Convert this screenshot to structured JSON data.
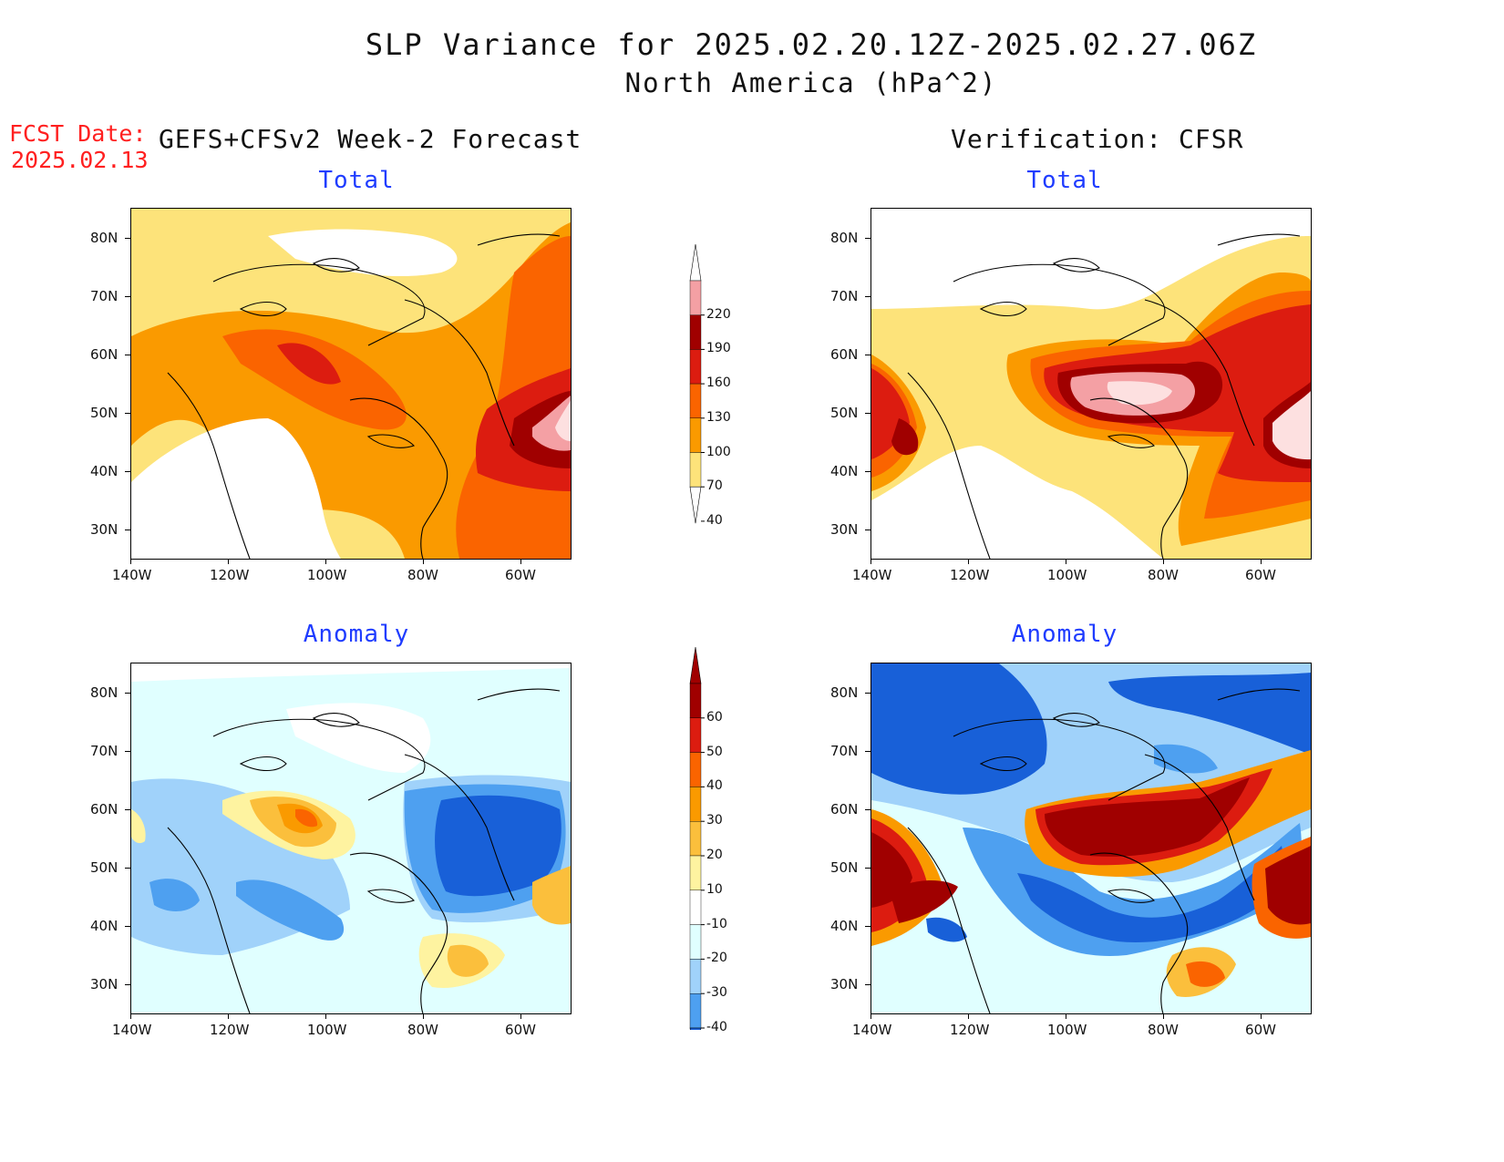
{
  "header": {
    "title_line1": "SLP Variance for 2025.02.20.12Z-2025.02.27.06Z",
    "title_line2": "North America (hPa^2)"
  },
  "forecast_date": {
    "label": "FCST Date:",
    "value": "2025.02.13"
  },
  "columns": {
    "left_label": "GEFS+CFSv2 Week-2 Forecast",
    "right_label": "Verification: CFSR"
  },
  "panels": {
    "fc_total_title": "Total",
    "fc_anom_title": "Anomaly",
    "ver_total_title": "Total",
    "ver_anom_title": "Anomaly"
  },
  "axes": {
    "lat_labels": [
      "80N",
      "70N",
      "60N",
      "50N",
      "40N",
      "30N"
    ],
    "lon_labels": [
      "140W",
      "120W",
      "100W",
      "80W",
      "60W"
    ]
  },
  "colorbars": {
    "total": {
      "levels": [
        "220",
        "190",
        "160",
        "130",
        "100",
        "70",
        "40"
      ],
      "colors": [
        "#fde0e0",
        "#f4a0a4",
        "#a00000",
        "#dc1c10",
        "#fa6400",
        "#fa9a00",
        "#fde37a"
      ]
    },
    "anomaly": {
      "levels": [
        "60",
        "50",
        "40",
        "30",
        "20",
        "10",
        "-10",
        "-20",
        "-30",
        "-40"
      ],
      "colors": [
        "#a00000",
        "#dc1c10",
        "#fa6400",
        "#fa9a00",
        "#fbbf3c",
        "#fef3a0",
        "#ffffff",
        "#e0ffff",
        "#a0d2fa",
        "#4ea0f0",
        "#1860d8"
      ]
    }
  }
}
